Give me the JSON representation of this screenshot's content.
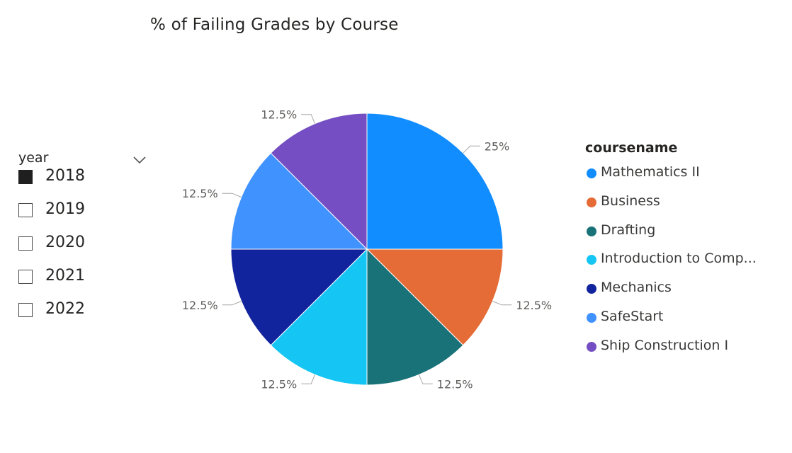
{
  "chart_data": {
    "type": "pie",
    "title": "% of Failing Grades by Course",
    "legend_title": "coursename",
    "legend_placement": "right",
    "slices": [
      {
        "label": "Mathematics II",
        "value": 25,
        "data_label": "25%",
        "color": "#118DFF"
      },
      {
        "label": "Business",
        "value": 12.5,
        "data_label": "12.5%",
        "color": "#E66C37"
      },
      {
        "label": "Drafting",
        "value": 12.5,
        "data_label": "12.5%",
        "color": "#197278"
      },
      {
        "label": "Introduction to Comp...",
        "value": 12.5,
        "data_label": "12.5%",
        "color": "#15C6F4"
      },
      {
        "label": "Mechanics",
        "value": 12.5,
        "data_label": "12.5%",
        "color": "#12239E"
      },
      {
        "label": "SafeStart",
        "value": 12.5,
        "data_label": "12.5%",
        "color": "#4092FF"
      },
      {
        "label": "Ship Construction I",
        "value": 12.5,
        "data_label": "12.5%",
        "color": "#744EC2"
      }
    ]
  },
  "slicer": {
    "title": "year",
    "items": [
      {
        "label": "2018",
        "checked": true
      },
      {
        "label": "2019",
        "checked": false
      },
      {
        "label": "2020",
        "checked": false
      },
      {
        "label": "2021",
        "checked": false
      },
      {
        "label": "2022",
        "checked": false
      }
    ]
  }
}
